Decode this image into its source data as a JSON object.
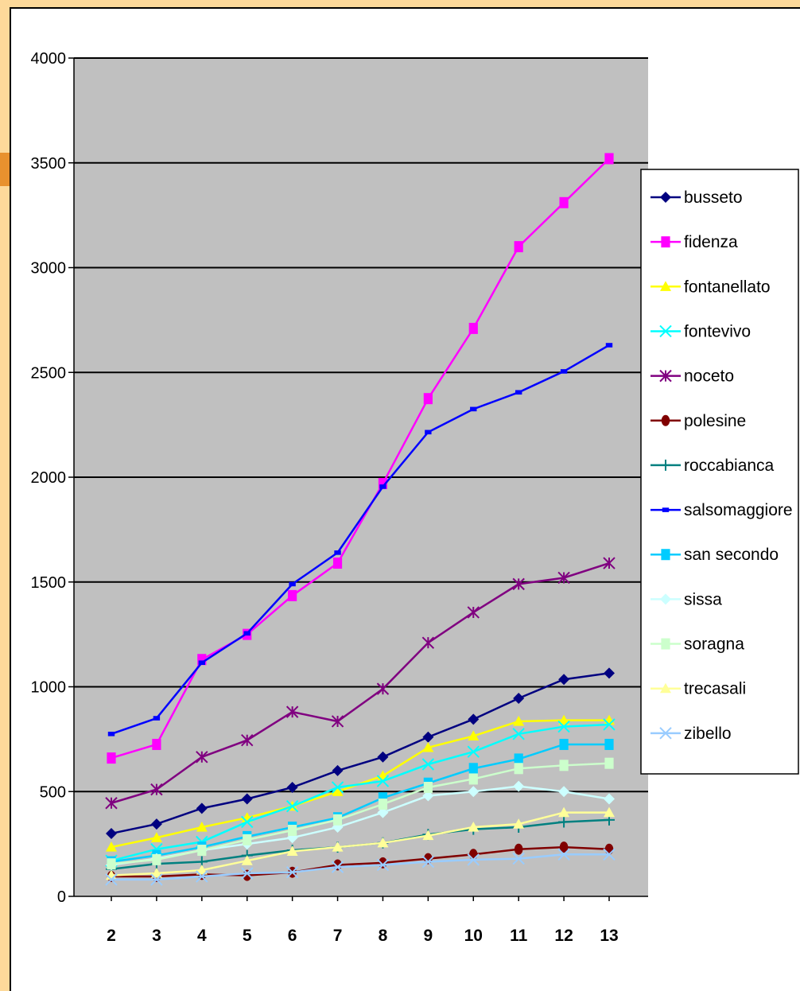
{
  "colors": {
    "page_background": "#FDD99A",
    "accent": "#E8912E",
    "panel": "#FFFFFF",
    "plot_area": "#C0C0C0",
    "gridline": "#000000"
  },
  "chart_data": {
    "type": "line",
    "title": "",
    "xlabel": "",
    "ylabel": "",
    "categories": [
      "2",
      "3",
      "4",
      "5",
      "6",
      "7",
      "8",
      "9",
      "10",
      "11",
      "12",
      "13"
    ],
    "ylim": [
      0,
      4000
    ],
    "yticks": [
      "0",
      "500",
      "1000",
      "1500",
      "2000",
      "2500",
      "3000",
      "3500",
      "4000"
    ],
    "grid": true,
    "legend_position": "right",
    "series": [
      {
        "name": "busseto",
        "color": "#000080",
        "marker": "diamond",
        "values": [
          300,
          345,
          420,
          465,
          520,
          600,
          665,
          760,
          845,
          945,
          1035,
          1065
        ]
      },
      {
        "name": "fidenza",
        "color": "#FF00FF",
        "marker": "square",
        "values": [
          660,
          725,
          1130,
          1250,
          1435,
          1590,
          1970,
          2375,
          2710,
          3100,
          3310,
          3520
        ]
      },
      {
        "name": "fontanellato",
        "color": "#FFFF00",
        "marker": "triangle",
        "values": [
          235,
          280,
          330,
          375,
          430,
          500,
          575,
          710,
          765,
          835,
          840,
          840
        ]
      },
      {
        "name": "fontevivo",
        "color": "#00FFFF",
        "marker": "x",
        "values": [
          170,
          225,
          260,
          355,
          430,
          520,
          550,
          630,
          690,
          775,
          810,
          820
        ]
      },
      {
        "name": "noceto",
        "color": "#800080",
        "marker": "star",
        "values": [
          445,
          510,
          665,
          745,
          880,
          835,
          990,
          1210,
          1355,
          1490,
          1520,
          1590
        ]
      },
      {
        "name": "polesine",
        "color": "#800000",
        "marker": "circle",
        "values": [
          95,
          95,
          105,
          100,
          115,
          150,
          160,
          180,
          200,
          225,
          235,
          225
        ]
      },
      {
        "name": "roccabianca",
        "color": "#008080",
        "marker": "plus",
        "values": [
          130,
          155,
          165,
          195,
          220,
          235,
          255,
          295,
          320,
          330,
          355,
          365
        ]
      },
      {
        "name": "salsomaggiore",
        "color": "#0000FF",
        "marker": "dash",
        "values": [
          775,
          850,
          1115,
          1255,
          1490,
          1640,
          1955,
          2215,
          2325,
          2405,
          2505,
          2630
        ]
      },
      {
        "name": "san secondo",
        "color": "#00CCFF",
        "marker": "square",
        "values": [
          165,
          195,
          235,
          285,
          330,
          375,
          470,
          540,
          610,
          655,
          725,
          725
        ]
      },
      {
        "name": "sissa",
        "color": "#CCFFFF",
        "marker": "diamond",
        "values": [
          150,
          180,
          220,
          250,
          280,
          330,
          400,
          480,
          500,
          525,
          500,
          465
        ]
      },
      {
        "name": "soragna",
        "color": "#CCFFCC",
        "marker": "square",
        "values": [
          155,
          175,
          220,
          270,
          315,
          365,
          440,
          520,
          560,
          610,
          625,
          635
        ]
      },
      {
        "name": "trecasali",
        "color": "#FFFF99",
        "marker": "triangle",
        "values": [
          100,
          110,
          125,
          170,
          215,
          235,
          255,
          290,
          330,
          345,
          400,
          400
        ]
      },
      {
        "name": "zibello",
        "color": "#99CCFF",
        "marker": "x",
        "values": [
          80,
          80,
          95,
          110,
          115,
          140,
          150,
          165,
          175,
          180,
          200,
          200
        ]
      }
    ]
  }
}
